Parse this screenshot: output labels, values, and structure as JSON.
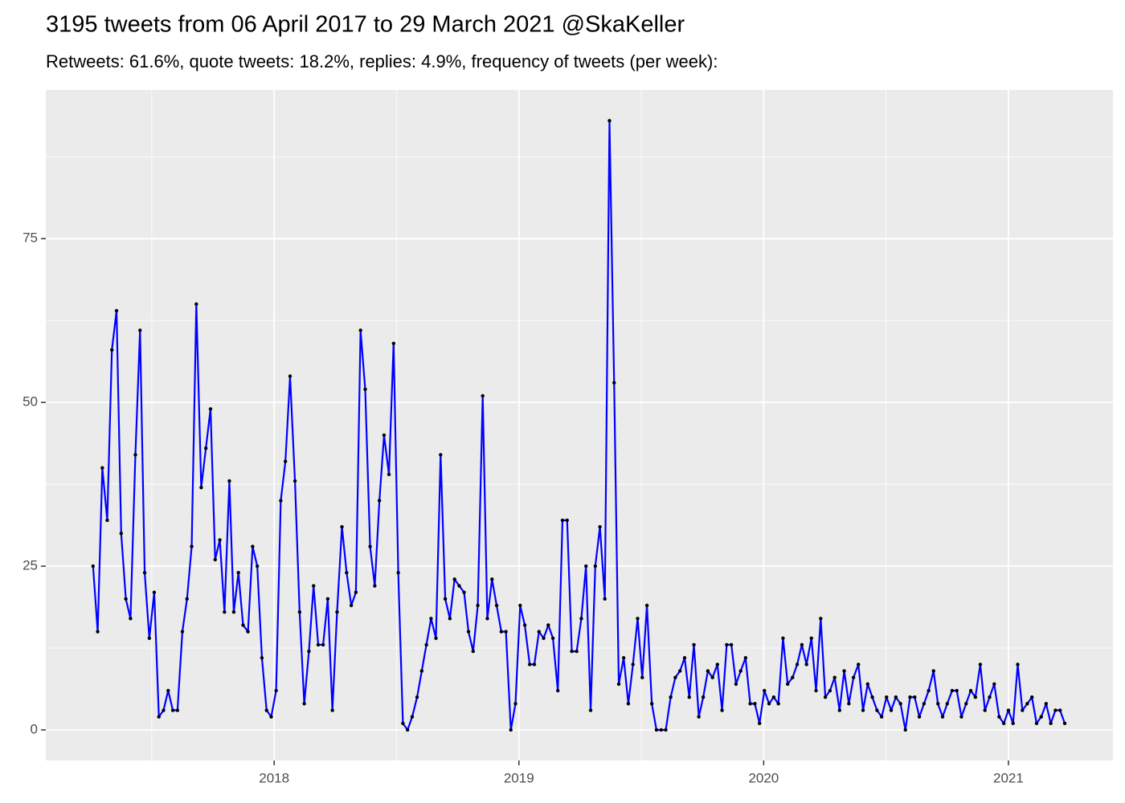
{
  "chart_data": {
    "type": "line",
    "title": "3195 tweets from 06 April 2017 to 29 March 2021 @SkaKeller",
    "subtitle": "Retweets: 61.6%, quote tweets: 18.2%, replies: 4.9%, frequency of tweets (per week):",
    "x": [
      2017.26,
      2017.279,
      2017.298,
      2017.318,
      2017.337,
      2017.356,
      2017.375,
      2017.394,
      2017.413,
      2017.433,
      2017.452,
      2017.471,
      2017.49,
      2017.51,
      2017.529,
      2017.548,
      2017.567,
      2017.586,
      2017.605,
      2017.625,
      2017.644,
      2017.663,
      2017.682,
      2017.702,
      2017.721,
      2017.74,
      2017.759,
      2017.778,
      2017.797,
      2017.817,
      2017.835,
      2017.854,
      2017.873,
      2017.893,
      2017.912,
      2017.931,
      2017.95,
      2017.969,
      2017.988,
      2018.008,
      2018.027,
      2018.046,
      2018.065,
      2018.085,
      2018.104,
      2018.123,
      2018.142,
      2018.161,
      2018.18,
      2018.2,
      2018.219,
      2018.238,
      2018.257,
      2018.277,
      2018.296,
      2018.315,
      2018.334,
      2018.353,
      2018.372,
      2018.392,
      2018.411,
      2018.43,
      2018.449,
      2018.469,
      2018.488,
      2018.507,
      2018.526,
      2018.545,
      2018.564,
      2018.584,
      2018.603,
      2018.622,
      2018.641,
      2018.661,
      2018.68,
      2018.699,
      2018.718,
      2018.737,
      2018.756,
      2018.776,
      2018.794,
      2018.813,
      2018.832,
      2018.852,
      2018.871,
      2018.89,
      2018.909,
      2018.928,
      2018.947,
      2018.967,
      2018.986,
      2019.005,
      2019.024,
      2019.044,
      2019.063,
      2019.082,
      2019.101,
      2019.12,
      2019.139,
      2019.159,
      2019.178,
      2019.197,
      2019.216,
      2019.236,
      2019.255,
      2019.274,
      2019.293,
      2019.312,
      2019.331,
      2019.351,
      2019.37,
      2019.389,
      2019.408,
      2019.428,
      2019.447,
      2019.466,
      2019.485,
      2019.504,
      2019.523,
      2019.543,
      2019.562,
      2019.581,
      2019.6,
      2019.62,
      2019.639,
      2019.658,
      2019.677,
      2019.696,
      2019.715,
      2019.735,
      2019.753,
      2019.772,
      2019.791,
      2019.811,
      2019.83,
      2019.849,
      2019.868,
      2019.887,
      2019.906,
      2019.926,
      2019.945,
      2019.964,
      2019.983,
      2020.003,
      2020.022,
      2020.041,
      2020.06,
      2020.079,
      2020.098,
      2020.118,
      2020.137,
      2020.156,
      2020.175,
      2020.195,
      2020.214,
      2020.233,
      2020.252,
      2020.271,
      2020.29,
      2020.31,
      2020.329,
      2020.348,
      2020.367,
      2020.387,
      2020.406,
      2020.425,
      2020.444,
      2020.463,
      2020.482,
      2020.502,
      2020.521,
      2020.54,
      2020.559,
      2020.579,
      2020.598,
      2020.617,
      2020.636,
      2020.655,
      2020.674,
      2020.694,
      2020.712,
      2020.731,
      2020.75,
      2020.77,
      2020.789,
      2020.808,
      2020.827,
      2020.846,
      2020.865,
      2020.885,
      2020.904,
      2020.923,
      2020.942,
      2020.962,
      2020.981,
      2021.0,
      2021.019,
      2021.038,
      2021.057,
      2021.077,
      2021.096,
      2021.115,
      2021.134,
      2021.154,
      2021.173,
      2021.192,
      2021.211,
      2021.23
    ],
    "series": [
      {
        "color": "#0000ff",
        "point_color": "#000000",
        "values": [
          25,
          15,
          40,
          32,
          58,
          64,
          30,
          20,
          17,
          42,
          61,
          24,
          14,
          21,
          2,
          3,
          6,
          3,
          3,
          15,
          20,
          28,
          65,
          37,
          43,
          49,
          26,
          29,
          18,
          38,
          18,
          24,
          16,
          15,
          28,
          25,
          11,
          3,
          2,
          6,
          35,
          41,
          54,
          38,
          18,
          4,
          12,
          22,
          13,
          13,
          20,
          3,
          18,
          31,
          24,
          19,
          21,
          61,
          52,
          28,
          22,
          35,
          45,
          39,
          59,
          24,
          1,
          0,
          2,
          5,
          9,
          13,
          17,
          14,
          42,
          20,
          17,
          23,
          22,
          21,
          15,
          12,
          19,
          51,
          17,
          23,
          19,
          15,
          15,
          0,
          4,
          19,
          16,
          10,
          10,
          15,
          14,
          16,
          14,
          6,
          32,
          32,
          12,
          12,
          17,
          25,
          3,
          25,
          31,
          20,
          93,
          53,
          7,
          11,
          4,
          10,
          17,
          8,
          19,
          4,
          0,
          0,
          0,
          5,
          8,
          9,
          11,
          5,
          13,
          2,
          5,
          9,
          8,
          10,
          3,
          13,
          13,
          7,
          9,
          11,
          4,
          4,
          1,
          6,
          4,
          5,
          4,
          14,
          7,
          8,
          10,
          13,
          10,
          14,
          6,
          17,
          5,
          6,
          8,
          3,
          9,
          4,
          8,
          10,
          3,
          7,
          5,
          3,
          2,
          5,
          3,
          5,
          4,
          0,
          5,
          5,
          2,
          4,
          6,
          9,
          4,
          2,
          4,
          6,
          6,
          2,
          4,
          6,
          5,
          10,
          3,
          5,
          7,
          2,
          1,
          3,
          1,
          10,
          3,
          4,
          5,
          1,
          2,
          4,
          1,
          3,
          3,
          1
        ]
      }
    ],
    "xlim": [
      2017.067,
      2021.427
    ],
    "xticks": [
      2018,
      2019,
      2020,
      2021
    ],
    "x_minor_ticks": [
      2017.5,
      2018.5,
      2019.5,
      2020.5
    ],
    "ylim": [
      -4.66,
      97.7
    ],
    "yticks": [
      0,
      25,
      50,
      75
    ],
    "y_minor_ticks": [
      12.5,
      37.5,
      62.5,
      87.5
    ],
    "grid": true
  }
}
